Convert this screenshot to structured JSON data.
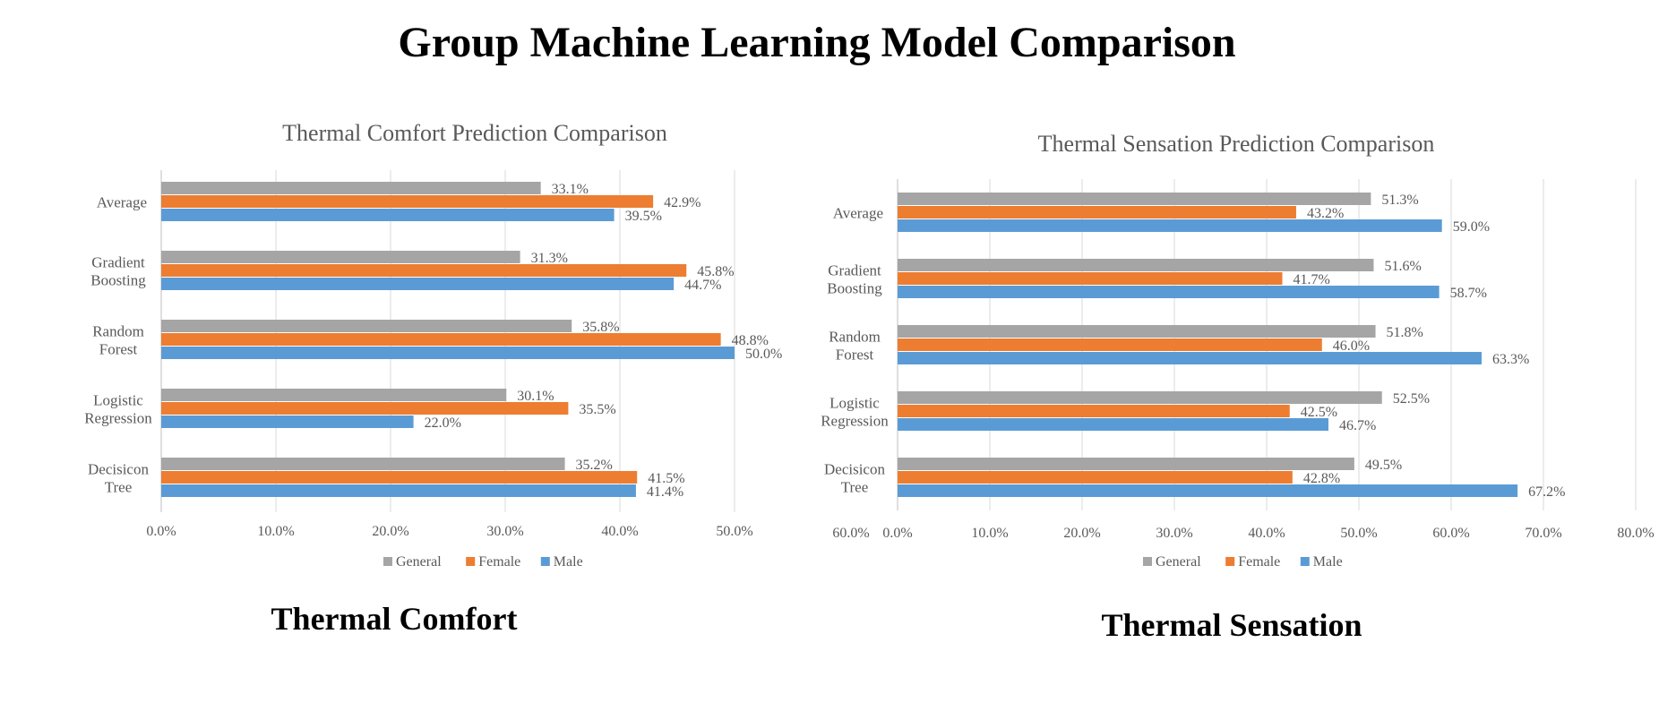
{
  "page_title": "Group Machine Learning Model Comparison",
  "captions": {
    "left": "Thermal Comfort",
    "right": "Thermal Sensation"
  },
  "colors": {
    "General": "#a5a5a5",
    "Female": "#ed7d31",
    "Male": "#5b9bd5",
    "grid": "#d9d9d9"
  },
  "chart_data": [
    {
      "type": "bar",
      "orientation": "horizontal",
      "title": "Thermal Comfort Prediction Comparison",
      "categories": [
        "Average",
        "Gradient Boosting",
        "Random Forest",
        "Logistic Regression",
        "Decisicon Tree"
      ],
      "series": [
        {
          "name": "General",
          "values": [
            33.1,
            31.3,
            35.8,
            30.1,
            35.2
          ]
        },
        {
          "name": "Female",
          "values": [
            42.9,
            45.8,
            48.8,
            35.5,
            41.5
          ]
        },
        {
          "name": "Male",
          "values": [
            39.5,
            44.7,
            50.0,
            22.0,
            41.4
          ]
        }
      ],
      "value_unit": "%",
      "xlim": [
        0,
        50
      ],
      "xticks": [
        "0.0%",
        "10.0%",
        "20.0%",
        "30.0%",
        "40.0%",
        "50.0%"
      ],
      "grid": true,
      "legend": "bottom"
    },
    {
      "type": "bar",
      "orientation": "horizontal",
      "title": "Thermal Sensation Prediction Comparison",
      "categories": [
        "Average",
        "Gradient Boosting",
        "Random Forest",
        "Logistic Regression",
        "Decisicon Tree"
      ],
      "series": [
        {
          "name": "General",
          "values": [
            51.3,
            51.6,
            51.8,
            52.5,
            49.5
          ]
        },
        {
          "name": "Female",
          "values": [
            43.2,
            41.7,
            46.0,
            42.5,
            42.8
          ]
        },
        {
          "name": "Male",
          "values": [
            59.0,
            58.7,
            63.3,
            46.7,
            67.2
          ]
        }
      ],
      "value_unit": "%",
      "xlim": [
        0,
        80
      ],
      "xticks": [
        "60.0%",
        "0.0%",
        "10.0%",
        "20.0%",
        "30.0%",
        "40.0%",
        "50.0%",
        "60.0%",
        "70.0%",
        "80.0%"
      ],
      "grid": true,
      "legend": "bottom"
    }
  ]
}
